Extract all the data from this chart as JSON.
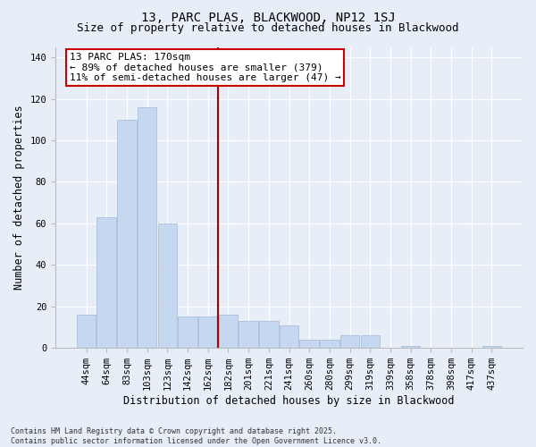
{
  "title": "13, PARC PLAS, BLACKWOOD, NP12 1SJ",
  "subtitle": "Size of property relative to detached houses in Blackwood",
  "xlabel": "Distribution of detached houses by size in Blackwood",
  "ylabel": "Number of detached properties",
  "categories": [
    "44sqm",
    "64sqm",
    "83sqm",
    "103sqm",
    "123sqm",
    "142sqm",
    "162sqm",
    "182sqm",
    "201sqm",
    "221sqm",
    "241sqm",
    "260sqm",
    "280sqm",
    "299sqm",
    "319sqm",
    "339sqm",
    "358sqm",
    "378sqm",
    "398sqm",
    "417sqm",
    "437sqm"
  ],
  "values": [
    16,
    63,
    110,
    116,
    60,
    15,
    15,
    16,
    13,
    13,
    11,
    4,
    4,
    6,
    6,
    0,
    1,
    0,
    0,
    0,
    1
  ],
  "bar_color": "#c5d8f0",
  "bar_edge_color": "#a0b8d8",
  "vline_label": "13 PARC PLAS: 170sqm",
  "annotation_line1": "← 89% of detached houses are smaller (379)",
  "annotation_line2": "11% of semi-detached houses are larger (47) →",
  "box_edge_color": "#cc0000",
  "ylim": [
    0,
    145
  ],
  "yticks": [
    0,
    20,
    40,
    60,
    80,
    100,
    120,
    140
  ],
  "background_color": "#e8eef8",
  "grid_color": "#ffffff",
  "footer": "Contains HM Land Registry data © Crown copyright and database right 2025.\nContains public sector information licensed under the Open Government Licence v3.0.",
  "title_fontsize": 10,
  "subtitle_fontsize": 9,
  "axis_label_fontsize": 8.5,
  "tick_fontsize": 7.5,
  "annotation_fontsize": 8,
  "footer_fontsize": 6
}
